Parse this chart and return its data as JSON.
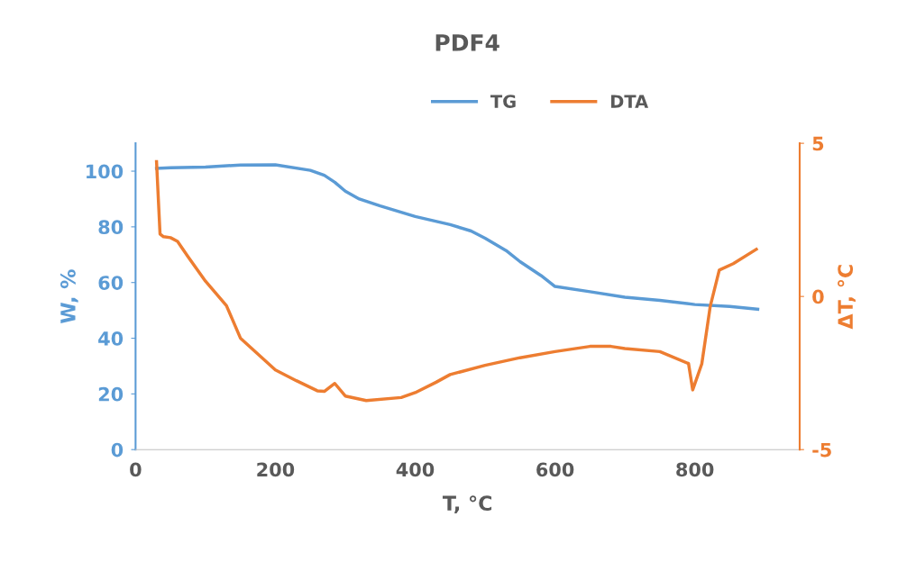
{
  "chart_data": {
    "type": "line",
    "title": "PDF4",
    "xlabel": "T, °C",
    "ylabel": "W, %",
    "y2label": "ΔT, °C",
    "xlim": [
      0,
      950
    ],
    "xticks": [
      0,
      200,
      400,
      600,
      800
    ],
    "ylim": [
      0,
      110
    ],
    "yticks": [
      0,
      20,
      40,
      60,
      80,
      100
    ],
    "y2lim": [
      -5,
      5
    ],
    "y2ticks": [
      -5,
      0,
      5
    ],
    "legend": "top",
    "grid": false,
    "series": [
      {
        "name": "TG",
        "color": "#5b9bd5",
        "axis": "y",
        "x": [
          30,
          50,
          100,
          150,
          200,
          250,
          270,
          285,
          300,
          320,
          350,
          400,
          450,
          480,
          500,
          530,
          550,
          580,
          600,
          650,
          700,
          750,
          800,
          850,
          890
        ],
        "values": [
          101,
          101.2,
          101.5,
          102.2,
          102.3,
          100.3,
          98.5,
          96,
          92.8,
          90,
          87.5,
          83.7,
          80.8,
          78.5,
          75.9,
          71.5,
          67.5,
          62.5,
          58.6,
          56.7,
          54.7,
          53.6,
          52.1,
          51.4,
          50.4
        ]
      },
      {
        "name": "DTA",
        "color": "#ed7d31",
        "axis": "y2",
        "x": [
          30,
          35,
          40,
          50,
          60,
          75,
          100,
          130,
          150,
          200,
          230,
          260,
          270,
          285,
          300,
          330,
          380,
          400,
          430,
          450,
          500,
          550,
          600,
          650,
          680,
          700,
          750,
          791,
          797,
          810,
          822,
          835,
          855,
          888
        ],
        "values": [
          4.4,
          2.04,
          1.95,
          1.92,
          1.8,
          1.3,
          0.5,
          -0.3,
          -1.36,
          -2.4,
          -2.75,
          -3.08,
          -3.1,
          -2.84,
          -3.25,
          -3.4,
          -3.3,
          -3.14,
          -2.8,
          -2.55,
          -2.25,
          -2.0,
          -1.8,
          -1.63,
          -1.63,
          -1.7,
          -1.8,
          -2.19,
          -3.05,
          -2.2,
          -0.33,
          0.86,
          1.07,
          1.54
        ]
      }
    ]
  }
}
